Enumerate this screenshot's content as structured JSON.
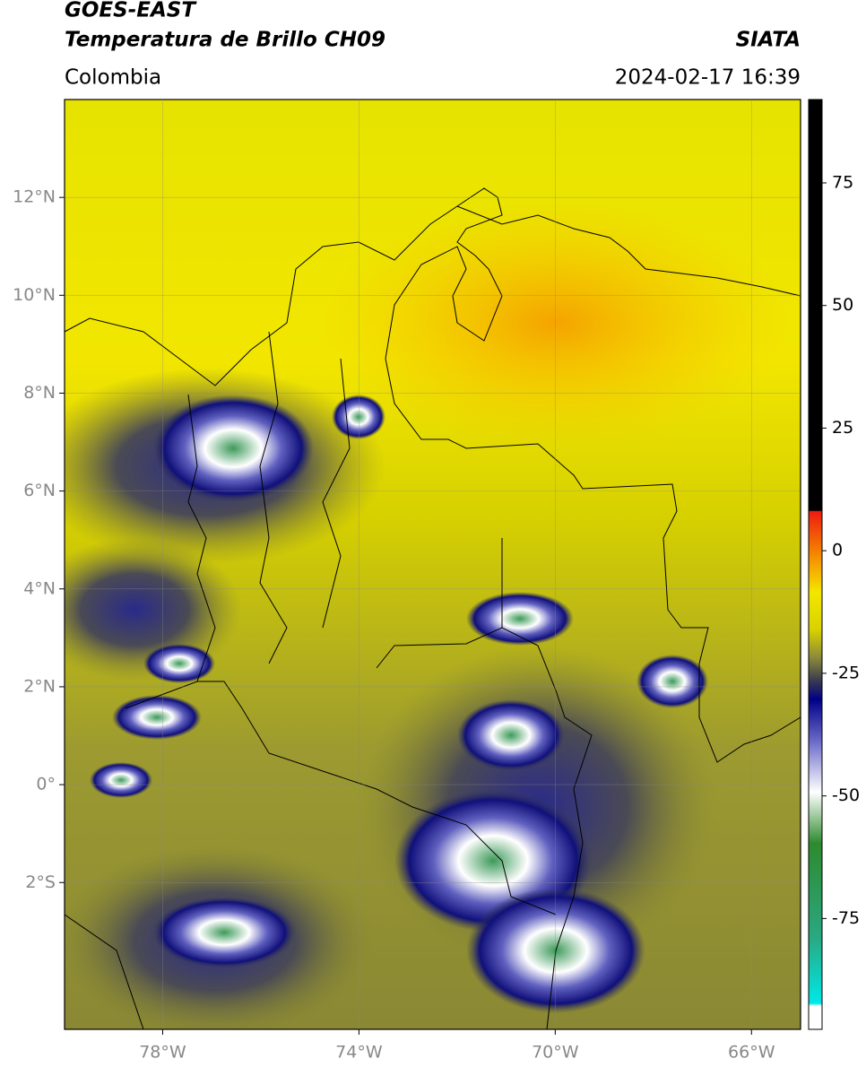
{
  "header": {
    "satellite": "GOES-EAST",
    "product": "Temperatura de Brillo CH09",
    "region": "Colombia",
    "agency": "SIATA",
    "datetime": "2024-02-17 16:39"
  },
  "map": {
    "xlim": [
      -80,
      -65
    ],
    "ylim": [
      -5,
      14
    ],
    "grid": true,
    "xticks": [
      {
        "value": -78,
        "label": "78°W"
      },
      {
        "value": -74,
        "label": "74°W"
      },
      {
        "value": -70,
        "label": "70°W"
      },
      {
        "value": -66,
        "label": "66°W"
      }
    ],
    "yticks": [
      {
        "value": -2,
        "label": "2°S"
      },
      {
        "value": 0,
        "label": "0°"
      },
      {
        "value": 2,
        "label": "2°N"
      },
      {
        "value": 4,
        "label": "4°N"
      },
      {
        "value": 6,
        "label": "6°N"
      },
      {
        "value": 8,
        "label": "8°N"
      },
      {
        "value": 10,
        "label": "10°N"
      },
      {
        "value": 12,
        "label": "12°N"
      }
    ]
  },
  "colorbar": {
    "lim": [
      -97.6,
      92
    ],
    "ticks": [
      75,
      50,
      25,
      0,
      -25,
      -50,
      -75
    ]
  }
}
